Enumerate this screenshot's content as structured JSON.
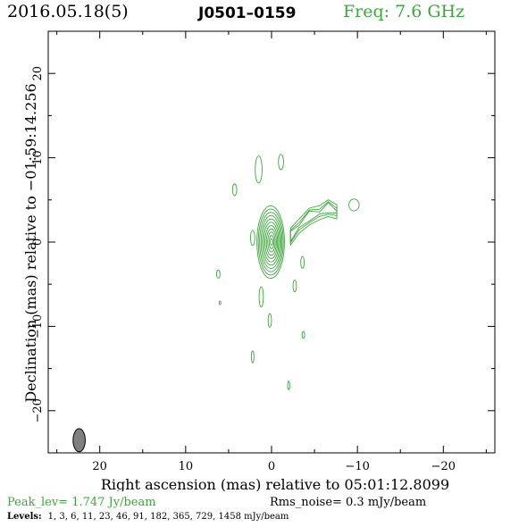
{
  "header": {
    "date": "2016.05.18(5)",
    "source": "J0501–0159",
    "freq": "Freq: 7.6 GHz"
  },
  "colors": {
    "contour": "#3ea63e",
    "freq_text": "#3ea63e",
    "beam": "#808080"
  },
  "chart_data": {
    "type": "contour",
    "xlabel": "Right ascension (mas) relative to 05:01:12.8099",
    "ylabel": "Declination (mas) relative to −01:59:14.256",
    "xlim": [
      26,
      -26
    ],
    "ylim": [
      -25,
      25
    ],
    "x_ticks": [
      20,
      10,
      0,
      -10,
      -20
    ],
    "y_ticks": [
      20,
      10,
      0,
      -10,
      -20
    ],
    "x_tick_labels": [
      "20",
      "10",
      "0",
      "−10",
      "−20"
    ],
    "y_tick_labels": [
      "20",
      "10",
      "0",
      "−10",
      "−20"
    ],
    "core": {
      "x": 0.1,
      "y": 0,
      "rx_mas": 1.6,
      "ry_mas": 4.3,
      "n_contours": 11
    },
    "beam": {
      "x": 22.4,
      "y": -23.5,
      "bmaj_mas": 2.1,
      "bmin_mas": 1.0
    },
    "jet_ridge": [
      {
        "x": -2.2,
        "y": 0.6
      },
      {
        "x": -3.2,
        "y": 1.9
      },
      {
        "x": -4.4,
        "y": 3.0
      },
      {
        "x": -5.6,
        "y": 3.5
      },
      {
        "x": -6.6,
        "y": 4.0
      },
      {
        "x": -7.6,
        "y": 3.6
      }
    ],
    "isolated_components": [
      {
        "x": 1.5,
        "y": 8.6,
        "rx": 0.4,
        "ry": 1.6
      },
      {
        "x": -1.1,
        "y": 9.5,
        "rx": 0.3,
        "ry": 0.9
      },
      {
        "x": 4.3,
        "y": 6.2,
        "rx": 0.25,
        "ry": 0.7
      },
      {
        "x": -9.6,
        "y": 4.4,
        "rx": 0.6,
        "ry": 0.7
      },
      {
        "x": 2.2,
        "y": 0.5,
        "rx": 0.25,
        "ry": 0.9
      },
      {
        "x": -3.6,
        "y": -2.4,
        "rx": 0.2,
        "ry": 0.7
      },
      {
        "x": 6.2,
        "y": -3.8,
        "rx": 0.2,
        "ry": 0.5
      },
      {
        "x": -2.7,
        "y": -5.2,
        "rx": 0.2,
        "ry": 0.7
      },
      {
        "x": 6.0,
        "y": -7.2,
        "rx": 0.1,
        "ry": 0.2
      },
      {
        "x": 1.2,
        "y": -6.5,
        "rx": 0.25,
        "ry": 1.2
      },
      {
        "x": 0.2,
        "y": -9.3,
        "rx": 0.2,
        "ry": 0.8
      },
      {
        "x": -3.7,
        "y": -11.0,
        "rx": 0.15,
        "ry": 0.4
      },
      {
        "x": 2.2,
        "y": -13.6,
        "rx": 0.15,
        "ry": 0.7
      },
      {
        "x": -2.0,
        "y": -17.0,
        "rx": 0.12,
        "ry": 0.5
      }
    ]
  },
  "footer": {
    "peak": "Peak_lev=  1.747 Jy/beam",
    "rms": "Rms_noise=  0.3 mJy/beam",
    "levels_label": "Levels:",
    "levels": "1,   3,   6,  11,  23,  46,  91, 182, 365, 729, 1458 mJy/beam"
  }
}
